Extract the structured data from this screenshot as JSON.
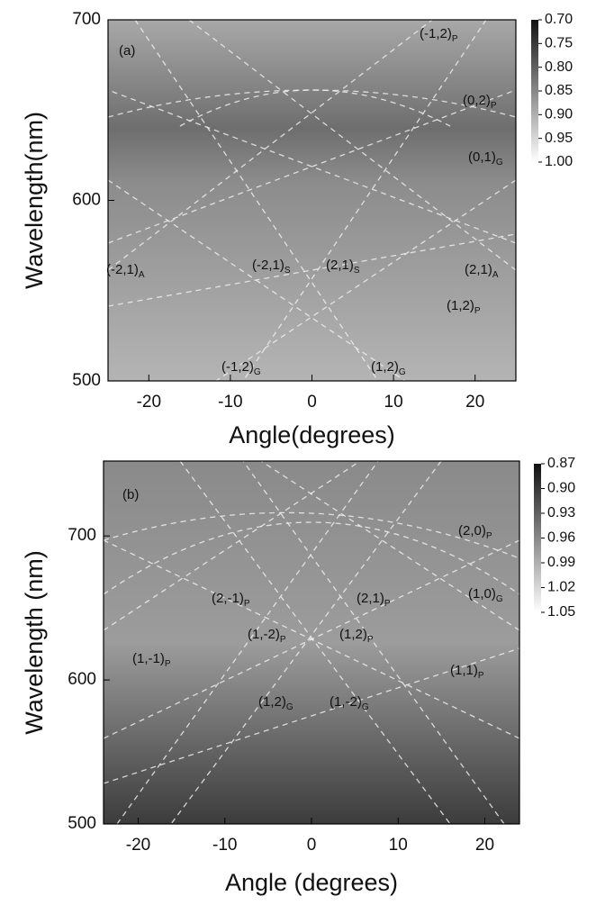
{
  "chart_data": [
    {
      "type": "heatmap",
      "panel_label": "(a)",
      "xlabel": "Angle(degrees)",
      "ylabel": "Wavelength(nm)",
      "xlim": [
        -25,
        25
      ],
      "xticks": [
        -20,
        -10,
        0,
        10,
        20
      ],
      "ylim": [
        500,
        700
      ],
      "yticks": [
        500,
        600,
        700
      ],
      "clim": [
        0.7,
        1.0
      ],
      "cticks": [
        {
          "value": 0.7,
          "label": "0.70"
        },
        {
          "value": 0.75,
          "label": "0.75"
        },
        {
          "value": 0.8,
          "label": "0.80"
        },
        {
          "value": 0.85,
          "label": "0.85"
        },
        {
          "value": 0.9,
          "label": "0.90"
        },
        {
          "value": 0.95,
          "label": "0.95"
        },
        {
          "value": 1.0,
          "label": "1.00"
        }
      ],
      "annotations": [
        {
          "text": "(-1,2)",
          "sub": "P"
        },
        {
          "text": "(0,2)",
          "sub": "P"
        },
        {
          "text": "(0,1)",
          "sub": "G"
        },
        {
          "text": "(-2,1)",
          "sub": "A"
        },
        {
          "text": "(-2,1)",
          "sub": "S"
        },
        {
          "text": "(2,1)",
          "sub": "S"
        },
        {
          "text": "(2,1)",
          "sub": "A"
        },
        {
          "text": "(1,2)",
          "sub": "P"
        },
        {
          "text": "(-1,2)",
          "sub": "G"
        },
        {
          "text": "(1,2)",
          "sub": "G"
        }
      ]
    },
    {
      "type": "heatmap",
      "panel_label": "(b)",
      "xlabel": "Angle (degrees)",
      "ylabel": "Wavelength (nm)",
      "xlim": [
        -24,
        24
      ],
      "xticks": [
        -20,
        -10,
        0,
        10,
        20
      ],
      "ylim": [
        500,
        752
      ],
      "yticks": [
        500,
        600,
        700
      ],
      "clim": [
        0.87,
        1.05
      ],
      "cticks": [
        {
          "value": 0.87,
          "label": "0.87"
        },
        {
          "value": 0.9,
          "label": "0.90"
        },
        {
          "value": 0.93,
          "label": "0.93"
        },
        {
          "value": 0.96,
          "label": "0.96"
        },
        {
          "value": 0.99,
          "label": "0.99"
        },
        {
          "value": 1.02,
          "label": "1.02"
        },
        {
          "value": 1.05,
          "label": "1.05"
        }
      ],
      "annotations": [
        {
          "text": "(2,0)",
          "sub": "P"
        },
        {
          "text": "(1,0)",
          "sub": "G"
        },
        {
          "text": "(1,-1)",
          "sub": "P"
        },
        {
          "text": "(2,-1)",
          "sub": "P"
        },
        {
          "text": "(2,1)",
          "sub": "P"
        },
        {
          "text": "(1,1)",
          "sub": "P"
        },
        {
          "text": "(1,-2)",
          "sub": "P"
        },
        {
          "text": "(1,2)",
          "sub": "P"
        },
        {
          "text": "(1,2)",
          "sub": "G"
        },
        {
          "text": "(1,-2)",
          "sub": "G"
        }
      ]
    }
  ]
}
